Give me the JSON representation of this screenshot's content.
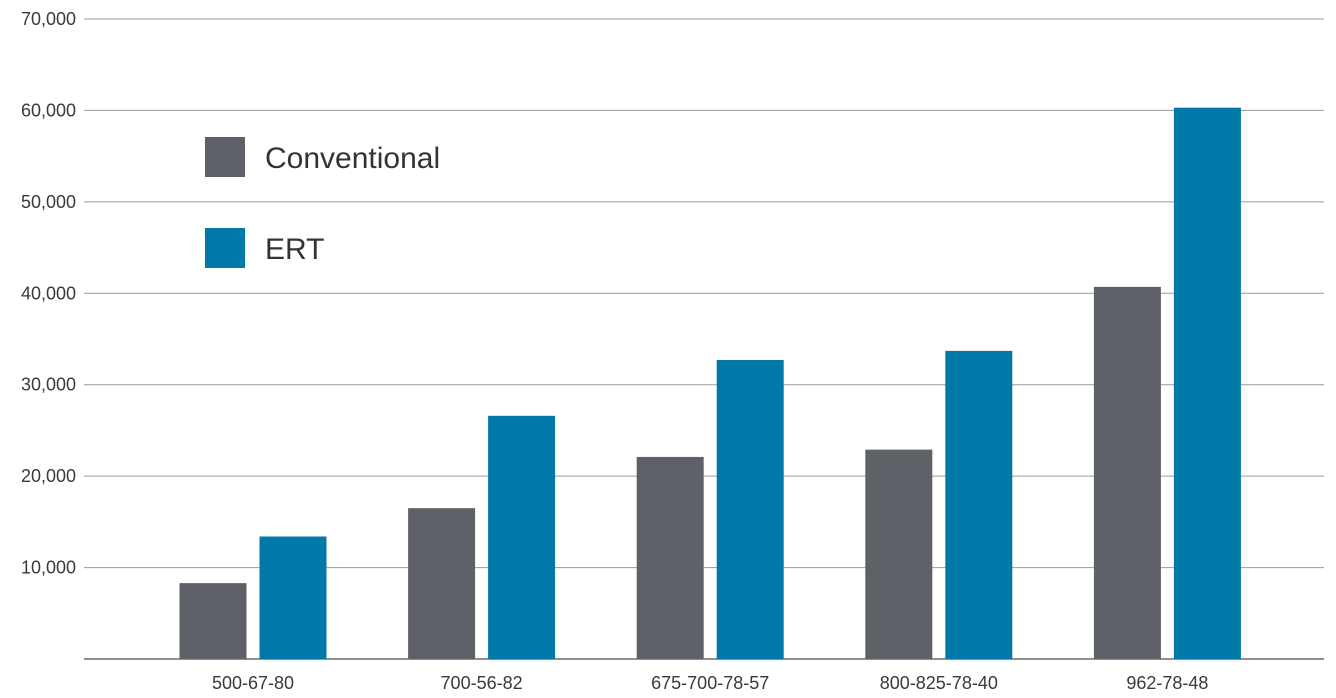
{
  "chart_data": {
    "type": "bar",
    "categories": [
      "500-67-80",
      "700-56-82",
      "675-700-78-57",
      "800-825-78-40",
      "962-78-48"
    ],
    "series": [
      {
        "name": "Conventional",
        "color": "#5f6168",
        "values": [
          8300,
          16500,
          22100,
          22900,
          40700
        ]
      },
      {
        "name": "ERT",
        "color": "#0079a8",
        "values": [
          13400,
          26600,
          32700,
          33700,
          60300
        ]
      }
    ],
    "ylim": [
      0,
      70000
    ],
    "yticks": [
      0,
      10000,
      20000,
      30000,
      40000,
      50000,
      60000,
      70000
    ],
    "ytick_labels": [
      "",
      "10,000",
      "20,000",
      "30,000",
      "40,000",
      "50,000",
      "60,000",
      "70,000"
    ],
    "grid": true,
    "legend_position": "top-left",
    "title": "",
    "xlabel": "",
    "ylabel": ""
  }
}
